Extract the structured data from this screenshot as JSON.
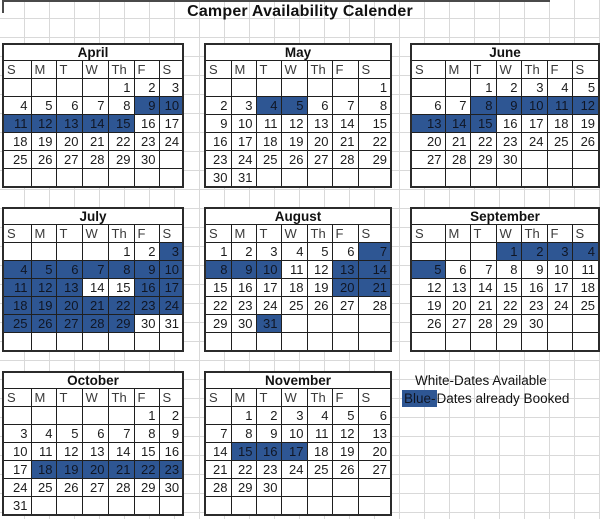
{
  "title": "Camper Availability Calender",
  "colors": {
    "booked_fill": "#2E5693",
    "available_fill": "#FFFFFF",
    "table_border": "#1F1F1F",
    "gridline": "#D9D9D9"
  },
  "day_headers": [
    "S",
    "M",
    "T",
    "W",
    "Th",
    "F",
    "S"
  ],
  "months": [
    {
      "name": "April",
      "weeks": [
        [
          "",
          "",
          "",
          "",
          "1",
          "2",
          "3"
        ],
        [
          "4",
          "5",
          "6",
          "7",
          "8",
          "9",
          "10"
        ],
        [
          "11",
          "12",
          "13",
          "14",
          "15",
          "16",
          "17"
        ],
        [
          "18",
          "19",
          "20",
          "21",
          "22",
          "23",
          "24"
        ],
        [
          "25",
          "26",
          "27",
          "28",
          "29",
          "30",
          ""
        ],
        [
          "",
          "",
          "",
          "",
          "",
          "",
          ""
        ]
      ],
      "booked": [
        9,
        10,
        11,
        12,
        13,
        14,
        15
      ]
    },
    {
      "name": "May",
      "weeks": [
        [
          "",
          "",
          "",
          "",
          "",
          "",
          "1"
        ],
        [
          "2",
          "3",
          "4",
          "5",
          "6",
          "7",
          "8"
        ],
        [
          "9",
          "10",
          "11",
          "12",
          "13",
          "14",
          "15"
        ],
        [
          "16",
          "17",
          "18",
          "19",
          "20",
          "21",
          "22"
        ],
        [
          "23",
          "24",
          "25",
          "26",
          "27",
          "28",
          "29"
        ],
        [
          "30",
          "31",
          "",
          "",
          "",
          "",
          ""
        ]
      ],
      "booked": [
        4,
        5
      ]
    },
    {
      "name": "June",
      "weeks": [
        [
          "",
          "",
          "1",
          "2",
          "3",
          "4",
          "5"
        ],
        [
          "6",
          "7",
          "8",
          "9",
          "10",
          "11",
          "12"
        ],
        [
          "13",
          "14",
          "15",
          "16",
          "17",
          "18",
          "19"
        ],
        [
          "20",
          "21",
          "22",
          "23",
          "24",
          "25",
          "26"
        ],
        [
          "27",
          "28",
          "29",
          "30",
          "",
          "",
          ""
        ],
        [
          "",
          "",
          "",
          "",
          "",
          "",
          ""
        ]
      ],
      "booked": [
        8,
        9,
        10,
        11,
        12,
        13,
        14,
        15
      ]
    },
    {
      "name": "July",
      "weeks": [
        [
          "",
          "",
          "",
          "",
          "1",
          "2",
          "3"
        ],
        [
          "4",
          "5",
          "6",
          "7",
          "8",
          "9",
          "10"
        ],
        [
          "11",
          "12",
          "13",
          "14",
          "15",
          "16",
          "17"
        ],
        [
          "18",
          "19",
          "20",
          "21",
          "22",
          "23",
          "24"
        ],
        [
          "25",
          "26",
          "27",
          "28",
          "29",
          "30",
          "31"
        ],
        [
          "",
          "",
          "",
          "",
          "",
          "",
          ""
        ]
      ],
      "booked": [
        3,
        4,
        5,
        6,
        7,
        8,
        9,
        10,
        11,
        12,
        13,
        16,
        17,
        18,
        19,
        20,
        21,
        22,
        23,
        24,
        25,
        26,
        27,
        28,
        29
      ]
    },
    {
      "name": "August",
      "weeks": [
        [
          "1",
          "2",
          "3",
          "4",
          "5",
          "6",
          "7"
        ],
        [
          "8",
          "9",
          "10",
          "11",
          "12",
          "13",
          "14"
        ],
        [
          "15",
          "16",
          "17",
          "18",
          "19",
          "20",
          "21"
        ],
        [
          "22",
          "23",
          "24",
          "25",
          "26",
          "27",
          "28"
        ],
        [
          "29",
          "30",
          "31",
          "",
          "",
          "",
          ""
        ],
        [
          "",
          "",
          "",
          "",
          "",
          "",
          ""
        ]
      ],
      "booked": [
        7,
        8,
        9,
        10,
        13,
        14,
        20,
        21,
        31
      ]
    },
    {
      "name": "September",
      "weeks": [
        [
          "",
          "",
          "",
          "1",
          "2",
          "3",
          "4"
        ],
        [
          "5",
          "6",
          "7",
          "8",
          "9",
          "10",
          "11"
        ],
        [
          "12",
          "13",
          "14",
          "15",
          "16",
          "17",
          "18"
        ],
        [
          "19",
          "20",
          "21",
          "22",
          "23",
          "24",
          "25"
        ],
        [
          "26",
          "27",
          "28",
          "29",
          "30",
          "",
          ""
        ],
        [
          "",
          "",
          "",
          "",
          "",
          "",
          ""
        ]
      ],
      "booked": [
        1,
        2,
        3,
        4,
        5
      ]
    },
    {
      "name": "October",
      "weeks": [
        [
          "",
          "",
          "",
          "",
          "",
          "1",
          "2"
        ],
        [
          "3",
          "4",
          "5",
          "6",
          "7",
          "8",
          "9"
        ],
        [
          "10",
          "11",
          "12",
          "13",
          "14",
          "15",
          "16"
        ],
        [
          "17",
          "18",
          "19",
          "20",
          "21",
          "22",
          "23"
        ],
        [
          "24",
          "25",
          "26",
          "27",
          "28",
          "29",
          "30"
        ],
        [
          "31",
          "",
          "",
          "",
          "",
          "",
          ""
        ]
      ],
      "booked": [
        18,
        19,
        20,
        21,
        22,
        23
      ]
    },
    {
      "name": "November",
      "weeks": [
        [
          "",
          "1",
          "2",
          "3",
          "4",
          "5",
          "6"
        ],
        [
          "7",
          "8",
          "9",
          "10",
          "11",
          "12",
          "13"
        ],
        [
          "14",
          "15",
          "16",
          "17",
          "18",
          "19",
          "20"
        ],
        [
          "21",
          "22",
          "23",
          "24",
          "25",
          "26",
          "27"
        ],
        [
          "28",
          "29",
          "30",
          "",
          "",
          "",
          ""
        ],
        [
          "",
          "",
          "",
          "",
          "",
          "",
          ""
        ]
      ],
      "booked": [
        15,
        16,
        17
      ]
    }
  ],
  "legend": {
    "available": "White-Dates Available",
    "booked_prefix": "Blue-",
    "booked_rest": "Dates already Booked"
  }
}
